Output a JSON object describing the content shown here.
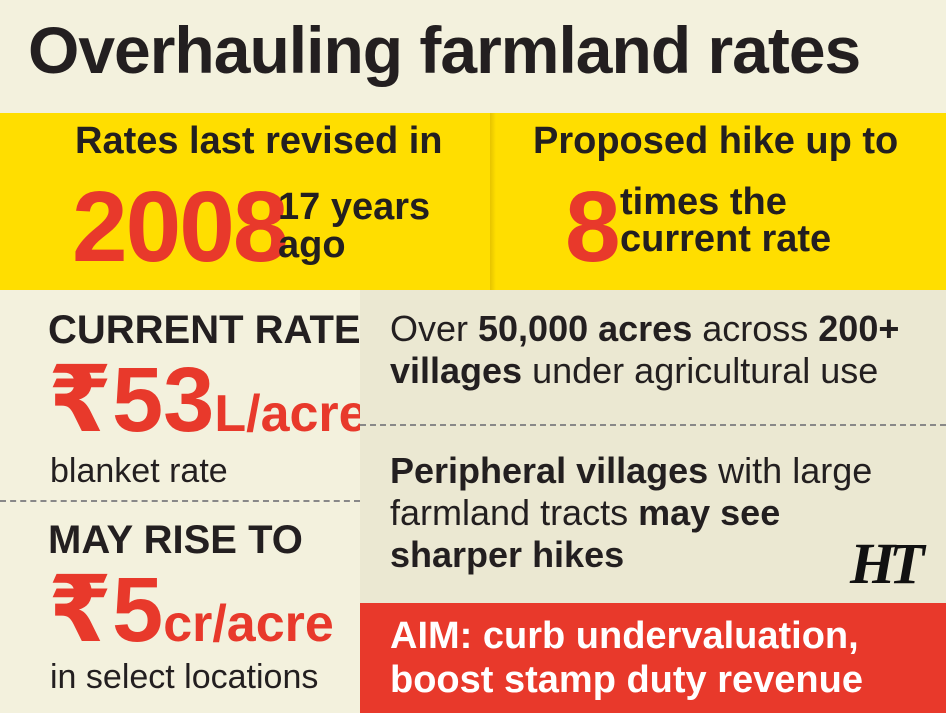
{
  "title": "Overhauling farmland rates",
  "band_left": {
    "label": "Rates last revised in",
    "year": "2008",
    "note_line1": "17 years",
    "note_line2": "ago"
  },
  "band_right": {
    "label": "Proposed hike up to",
    "number": "8",
    "note_line1": "times the",
    "note_line2": "current rate"
  },
  "current_rate": {
    "heading": "CURRENT RATE",
    "amount": "₹53",
    "unit": "L/acre",
    "caption": "blanket rate"
  },
  "may_rise": {
    "heading": "MAY RISE TO",
    "amount": "₹5",
    "unit": "cr/acre",
    "caption": "in select locations"
  },
  "fact1": {
    "p1": "Over ",
    "b1": "50,000 acres",
    "p2": " across ",
    "b2": "200+ villages",
    "p3": " under agricultural use"
  },
  "fact2": {
    "b1": "Peripheral villages",
    "p1": " with large farmland tracts ",
    "b2": "may see sharper hikes"
  },
  "aim": {
    "line1": "AIM: curb undervaluation,",
    "line2": "boost stamp duty revenue"
  },
  "logo": "HT",
  "colors": {
    "yellow": "#ffde00",
    "red": "#e8392b",
    "background": "#f3f1dd",
    "text": "#231f20"
  }
}
